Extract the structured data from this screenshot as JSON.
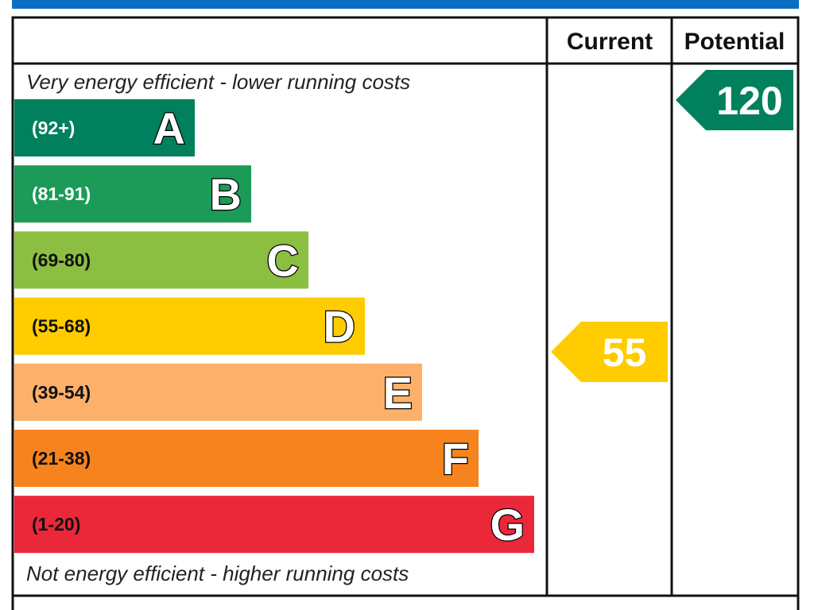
{
  "header": {
    "current": "Current",
    "potential": "Potential"
  },
  "top_note": "Very energy efficient - lower running costs",
  "bottom_note": "Not energy efficient - higher running costs",
  "bands": [
    {
      "range": "(92+)",
      "letter": "A",
      "color": "#00805c",
      "text_color": "#ffffff"
    },
    {
      "range": "(81-91)",
      "letter": "B",
      "color": "#1b9b57",
      "text_color": "#ffffff"
    },
    {
      "range": "(69-80)",
      "letter": "C",
      "color": "#8cbe42",
      "text_color": "#111111"
    },
    {
      "range": "(55-68)",
      "letter": "D",
      "color": "#ffcc00",
      "text_color": "#111111"
    },
    {
      "range": "(39-54)",
      "letter": "E",
      "color": "#fcb06a",
      "text_color": "#111111"
    },
    {
      "range": "(21-38)",
      "letter": "F",
      "color": "#f7831f",
      "text_color": "#111111"
    },
    {
      "range": "(1-20)",
      "letter": "G",
      "color": "#ea2839",
      "text_color": "#111111"
    }
  ],
  "current": {
    "value": "55",
    "color": "#ffcc00"
  },
  "potential": {
    "value": "120",
    "color": "#00805c"
  }
}
